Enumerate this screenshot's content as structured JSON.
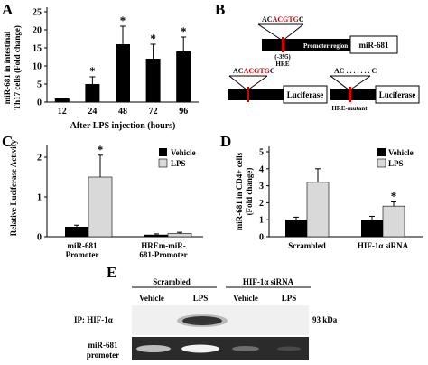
{
  "panels": {
    "A": {
      "letter": "A",
      "ylabel_line1": "miR-681 in intestinal",
      "ylabel_line2": "Th17 cells (Fold change)",
      "xlabel": "After LPS injection (hours)",
      "yticks": [
        "0",
        "5",
        "10",
        "15",
        "20",
        "25"
      ],
      "star": "*"
    },
    "B": {
      "letter": "B",
      "top_seq_prefix": "AC",
      "top_seq_red": "ACGTG",
      "top_seq_suffix": "C",
      "site_label": "(-395)",
      "hre_label": "HRE",
      "promoter_region": "Promoter region",
      "mirna_box": "miR-681",
      "left_seq_prefix": "AC",
      "left_seq_red": "ACGTG",
      "left_seq_suffix": "C",
      "luc_left": "Luciferase",
      "right_seq": "AC . . . . . . . C",
      "luc_right": "Luciferase",
      "hre_mutant": "HRE-mutant"
    },
    "C": {
      "letter": "C",
      "ylabel": "Relative Luciferase Activity",
      "yticks": [
        "0",
        "1",
        "2"
      ],
      "group1_line1": "miR-681",
      "group1_line2": "Promoter",
      "group2_line1": "HREm-miR-",
      "group2_line2": "681-Promoter",
      "legend_vehicle": "Vehicle",
      "legend_lps": "LPS",
      "star": "*"
    },
    "D": {
      "letter": "D",
      "ylabel_line1": "miR-681 in CD4+ cells",
      "ylabel_line2": "(Fold change)",
      "yticks": [
        "0",
        "1",
        "2",
        "3",
        "4",
        "5"
      ],
      "group1": "Scrambled",
      "group2": "HIF-1α siRNA",
      "legend_vehicle": "Vehicle",
      "legend_lps": "LPS",
      "star": "*"
    },
    "E": {
      "letter": "E",
      "header_scrambled": "Scrambled",
      "header_sirna": "HIF-1α  siRNA",
      "col_vehicle_1": "Vehicle",
      "col_lps_1": "LPS",
      "col_vehicle_2": "Vehicle",
      "col_lps_2": "LPS",
      "row1_label": "IP: HIF-1α",
      "row2_line1": "miR-681",
      "row2_line2": "promoter",
      "kda": "93 kDa"
    }
  },
  "chart_data": [
    {
      "panel": "A",
      "type": "bar",
      "categories": [
        "12",
        "24",
        "48",
        "72",
        "96"
      ],
      "values": [
        1,
        5,
        16,
        12,
        14
      ],
      "errors": [
        0,
        2,
        5,
        4,
        4
      ],
      "significant": [
        false,
        true,
        true,
        true,
        true
      ],
      "xlabel": "After LPS injection (hours)",
      "ylabel": "miR-681 in intestinal Th17 cells (Fold change)",
      "ylim": [
        0,
        25
      ],
      "colors": {
        "bar": "#000000"
      }
    },
    {
      "panel": "C",
      "type": "bar",
      "categories": [
        "miR-681 Promoter",
        "HREm-miR-681-Promoter"
      ],
      "series": [
        {
          "name": "Vehicle",
          "values": [
            0.25,
            0.05
          ],
          "errors": [
            0.04,
            0.02
          ],
          "color": "#000000"
        },
        {
          "name": "LPS",
          "values": [
            1.5,
            0.08
          ],
          "errors": [
            0.55,
            0.03
          ],
          "color": "#d9d9d9"
        }
      ],
      "significant_lps": [
        true,
        false
      ],
      "ylabel": "Relative Luciferase Activity",
      "ylim": [
        0,
        2.25
      ]
    },
    {
      "panel": "D",
      "type": "bar",
      "categories": [
        "Scrambled",
        "HIF-1α siRNA"
      ],
      "series": [
        {
          "name": "Vehicle",
          "values": [
            1.0,
            1.0
          ],
          "errors": [
            0.15,
            0.2
          ],
          "color": "#000000"
        },
        {
          "name": "LPS",
          "values": [
            3.2,
            1.8
          ],
          "errors": [
            0.8,
            0.25
          ],
          "color": "#d9d9d9"
        }
      ],
      "significant_lps": [
        false,
        true
      ],
      "ylabel": "miR-681 in CD4+ cells (Fold change)",
      "ylim": [
        0,
        5
      ]
    }
  ]
}
